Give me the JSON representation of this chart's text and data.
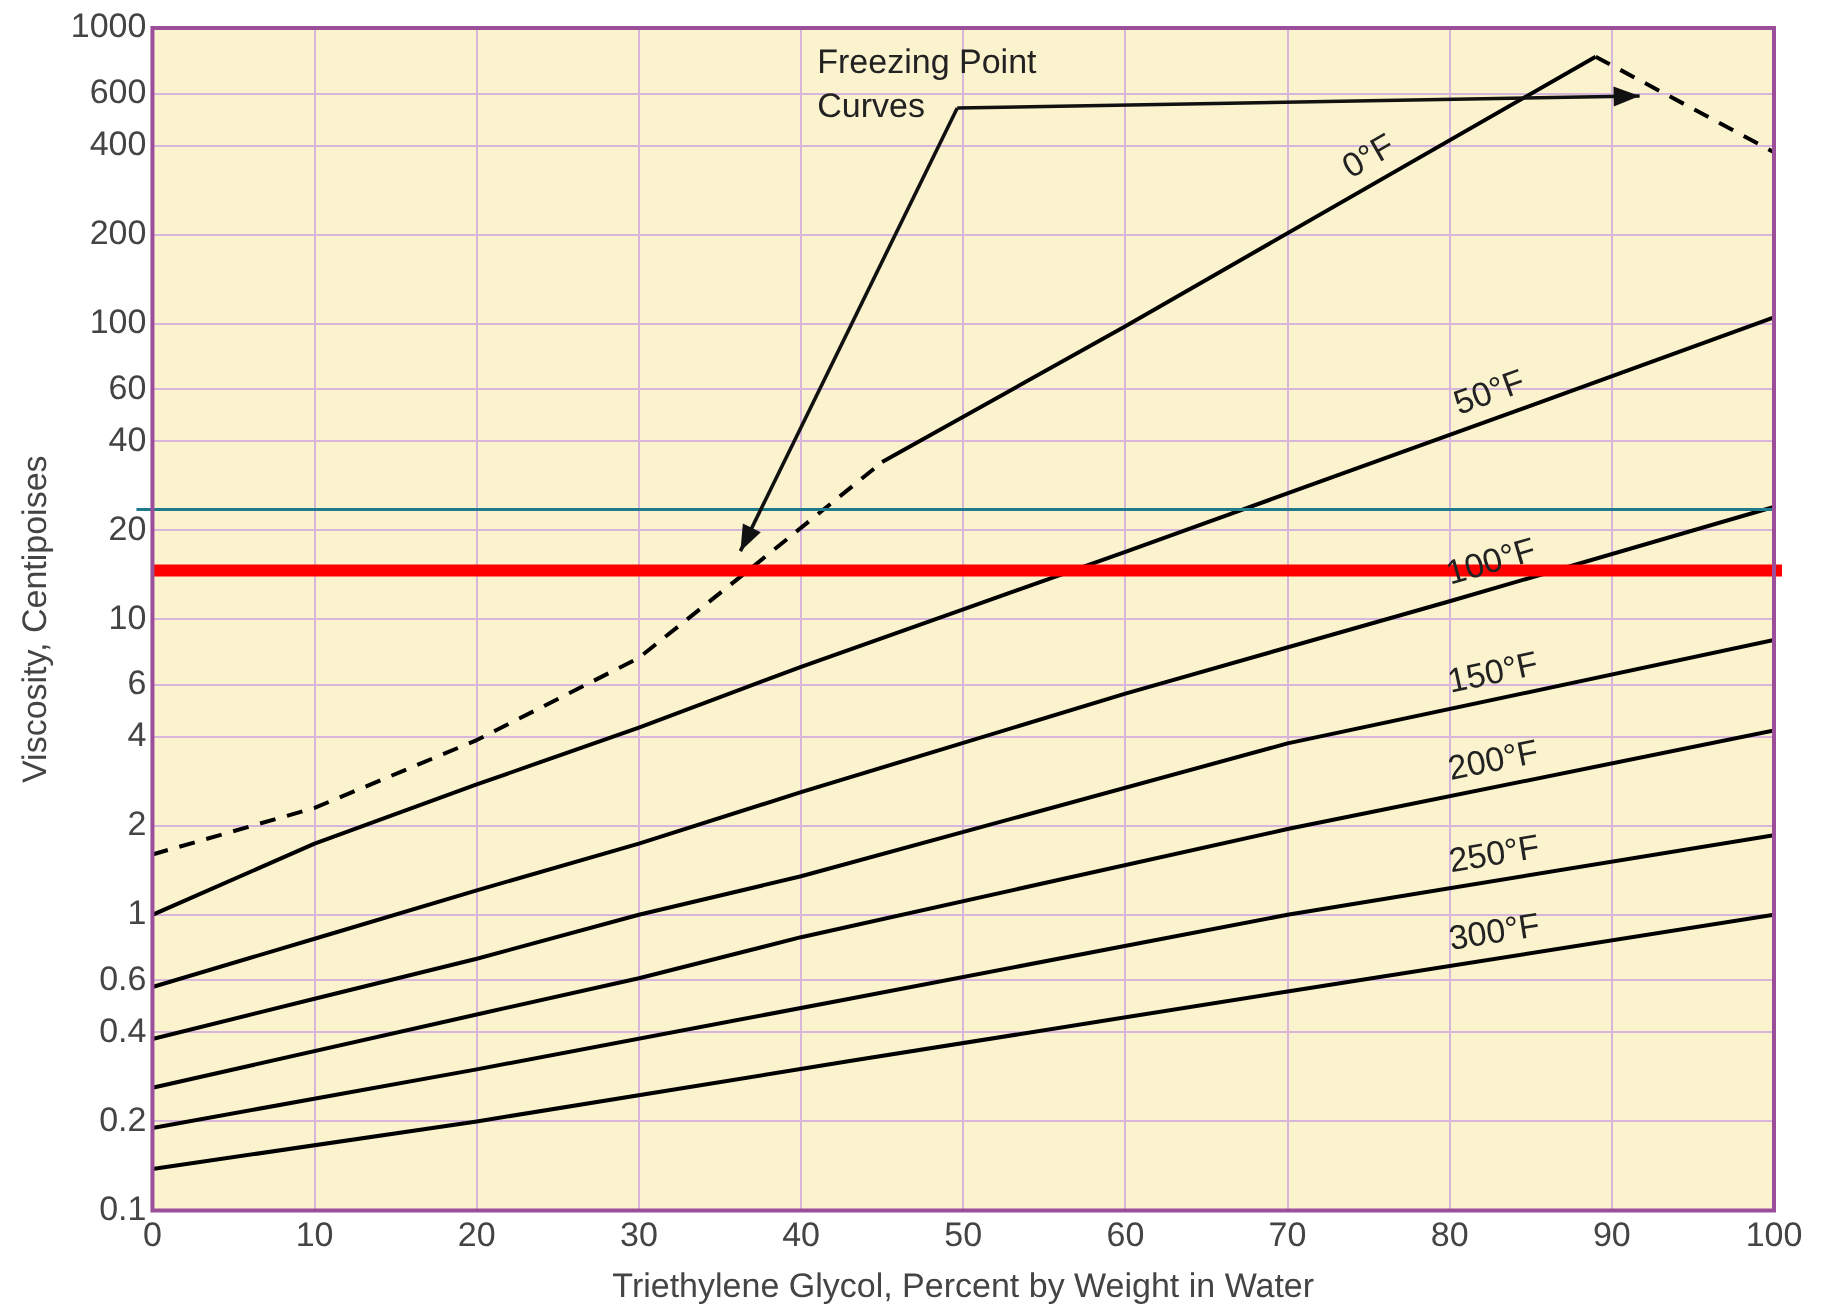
{
  "chart_data": {
    "type": "line",
    "xlabel": "Triethylene Glycol, Percent by Weight in Water",
    "ylabel": "Viscosity, Centipoises",
    "log": "y",
    "xlim": [
      0,
      100
    ],
    "xticks": [
      0,
      10,
      20,
      30,
      40,
      50,
      60,
      70,
      80,
      90,
      100
    ],
    "ylim": [
      0.1,
      1000
    ],
    "yticks": [
      0.1,
      0.2,
      0.4,
      0.6,
      1,
      2,
      4,
      6,
      10,
      20,
      40,
      60,
      100,
      200,
      400,
      600,
      1000
    ],
    "grid": true,
    "legend": false,
    "marker": "none",
    "line_style": "solid",
    "ref_lines": [
      {
        "axis": "y",
        "value": 23.5,
        "color": "#1f7a8c"
      },
      {
        "axis": "y",
        "value": 14.6,
        "color": "#ff0000"
      }
    ],
    "annotations": [
      "Freezing Point Curves"
    ],
    "series": [
      {
        "type": "line",
        "color": "#000000",
        "line_style": "dashed",
        "x": [
          0,
          10,
          20,
          30,
          37,
          45
        ],
        "values": [
          1.6,
          2.3,
          3.9,
          7.4,
          15,
          34
        ]
      },
      {
        "name": "0°F",
        "color": "#000000",
        "x": [
          45,
          60,
          89
        ],
        "values": [
          34,
          98,
          800
        ]
      },
      {
        "type": "line",
        "color": "#000000",
        "line_style": "dashed",
        "x": [
          89,
          100
        ],
        "values": [
          800,
          380
        ]
      },
      {
        "name": "50°F",
        "color": "#000000",
        "x": [
          0,
          10,
          20,
          30,
          40,
          50,
          60,
          80,
          100
        ],
        "values": [
          1.0,
          1.74,
          2.76,
          4.3,
          6.9,
          10.8,
          16.9,
          42,
          105
        ]
      },
      {
        "name": "100°F",
        "color": "#000000",
        "x": [
          0,
          10,
          20,
          30,
          40,
          60,
          80,
          100
        ],
        "values": [
          0.57,
          0.83,
          1.21,
          1.74,
          2.6,
          5.6,
          11.5,
          24
        ]
      },
      {
        "name": "150°F",
        "color": "#000000",
        "x": [
          0,
          10,
          20,
          30,
          40,
          70,
          100
        ],
        "values": [
          0.38,
          0.52,
          0.71,
          1.0,
          1.35,
          3.8,
          8.5
        ]
      },
      {
        "name": "200°F",
        "color": "#000000",
        "x": [
          0,
          20,
          30,
          40,
          70,
          100
        ],
        "values": [
          0.26,
          0.46,
          0.61,
          0.84,
          1.95,
          4.2
        ]
      },
      {
        "name": "250°F",
        "color": "#000000",
        "x": [
          0,
          20,
          43,
          70,
          100
        ],
        "values": [
          0.19,
          0.3,
          0.52,
          1.0,
          1.86
        ]
      },
      {
        "name": "300°F",
        "color": "#000000",
        "x": [
          0,
          20,
          43,
          70,
          100
        ],
        "values": [
          0.138,
          0.2,
          0.32,
          0.55,
          1.0
        ]
      }
    ]
  }
}
